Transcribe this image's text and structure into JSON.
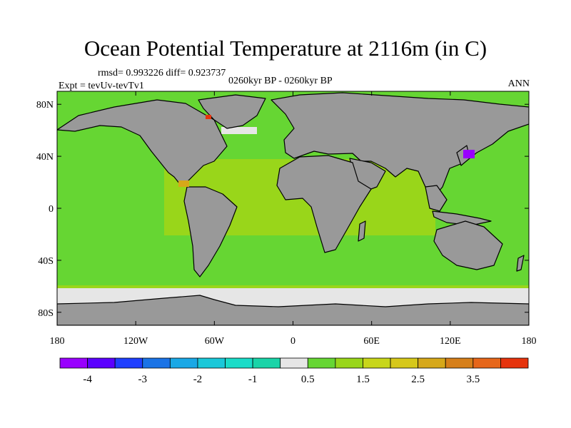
{
  "title": "Ocean Potential Temperature at 2116m (in C)",
  "stats": "rmsd= 0.993226 diff= 0.923737",
  "experiment": "Expt = tevUv-tevTv1",
  "period": "0260kyr BP - 0260kyr BP",
  "season": "ANN",
  "colors": {
    "land": "#999999",
    "ocean_main": "#99D61A",
    "ocean_alt": "#66D633",
    "ice_white": "#E6E6E6",
    "coast": "#000000"
  },
  "map": {
    "lon_range": [
      -180,
      180
    ],
    "lat_range": [
      -90,
      90
    ],
    "x_ticks": [
      {
        "lon": -180,
        "label": "180"
      },
      {
        "lon": -120,
        "label": "120W"
      },
      {
        "lon": -60,
        "label": "60W"
      },
      {
        "lon": 0,
        "label": "0"
      },
      {
        "lon": 60,
        "label": "60E"
      },
      {
        "lon": 120,
        "label": "120E"
      },
      {
        "lon": 180,
        "label": "180"
      }
    ],
    "y_ticks": [
      {
        "lat": 80,
        "label": "80N"
      },
      {
        "lat": 40,
        "label": "40N"
      },
      {
        "lat": 0,
        "label": "0"
      },
      {
        "lat": -40,
        "label": "40S"
      },
      {
        "lat": -80,
        "label": "80S"
      }
    ]
  },
  "colorbar": {
    "colors": [
      "#9900FF",
      "#5B00FF",
      "#1F3FFF",
      "#1A73E6",
      "#1AA8E6",
      "#1AC8D9",
      "#1ADCC8",
      "#1AD4A8",
      "#E6E6E6",
      "#66D633",
      "#99D61A",
      "#C8D61A",
      "#D6C81A",
      "#D6A81A",
      "#D67F1A",
      "#E6661A",
      "#E6330D"
    ],
    "labels": [
      {
        "boundary": 1,
        "text": "-4"
      },
      {
        "boundary": 3,
        "text": "-3"
      },
      {
        "boundary": 5,
        "text": "-2"
      },
      {
        "boundary": 7,
        "text": "-1"
      },
      {
        "boundary": 9,
        "text": "0.5"
      },
      {
        "boundary": 11,
        "text": "1.5"
      },
      {
        "boundary": 13,
        "text": "2.5"
      },
      {
        "boundary": 15,
        "text": "3.5"
      }
    ]
  }
}
